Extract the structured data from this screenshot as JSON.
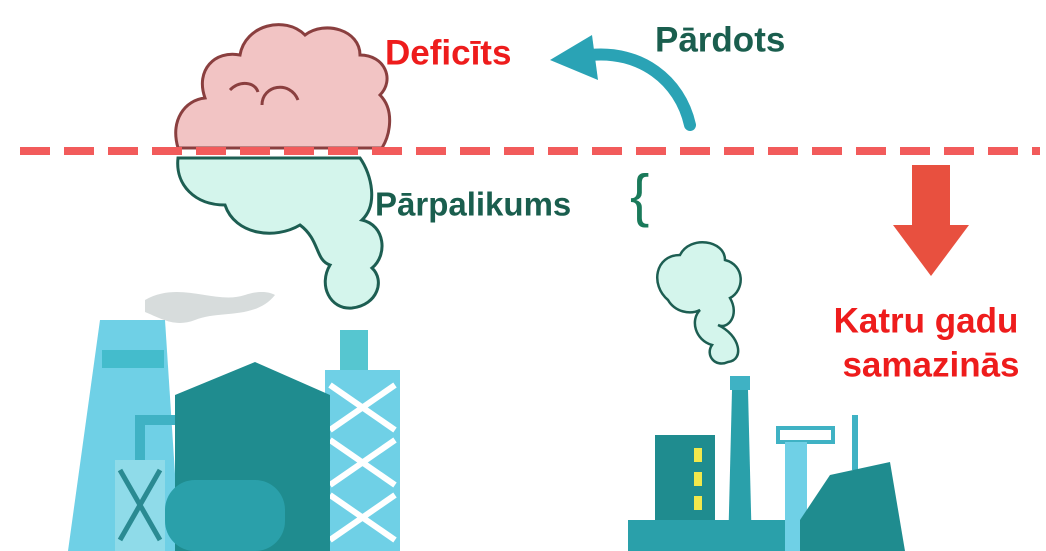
{
  "labels": {
    "deficit": "Deficīts",
    "sold": "Pārdots",
    "surplus": "Pārpalikums",
    "brace": "{",
    "reduction": [
      "Katru gadu",
      "samazinās"
    ]
  }
}
